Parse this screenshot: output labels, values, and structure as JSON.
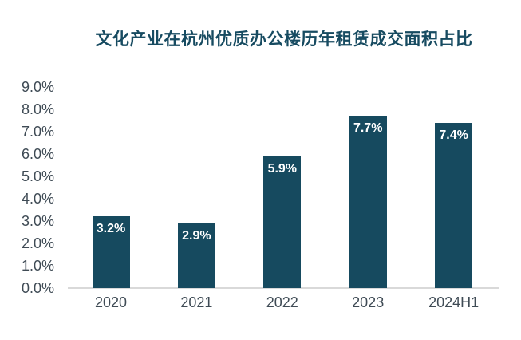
{
  "chart_data": {
    "type": "bar",
    "title": "文化产业在杭州优质办公楼历年租赁成交面积占比",
    "categories": [
      "2020",
      "2021",
      "2022",
      "2023",
      "2024H1"
    ],
    "values": [
      3.2,
      2.9,
      5.9,
      7.7,
      7.4
    ],
    "value_labels": [
      "3.2%",
      "2.9%",
      "5.9%",
      "7.7%",
      "7.4%"
    ],
    "xlabel": "",
    "ylabel": "",
    "ylim": [
      0,
      9
    ],
    "y_tick_step": 1,
    "y_tick_labels": [
      "0.0%",
      "1.0%",
      "2.0%",
      "3.0%",
      "4.0%",
      "5.0%",
      "6.0%",
      "7.0%",
      "8.0%",
      "9.0%"
    ],
    "grid": false,
    "legend": null,
    "value_label_position": "inside-top",
    "colors": {
      "background": "#ffffff",
      "bar": "#164a5f",
      "title": "#174b61",
      "axis_text": "#3f4b55",
      "baseline": "#d9d9d9",
      "value_label_text": "#ffffff"
    }
  }
}
